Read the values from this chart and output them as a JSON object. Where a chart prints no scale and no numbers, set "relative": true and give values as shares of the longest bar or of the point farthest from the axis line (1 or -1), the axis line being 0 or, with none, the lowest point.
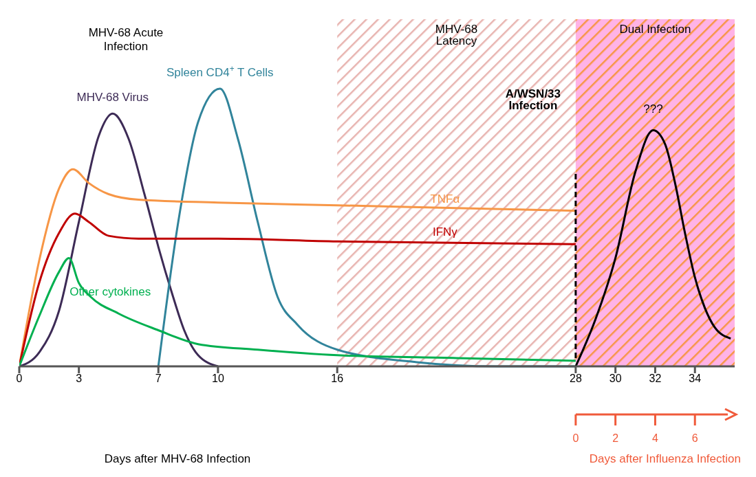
{
  "chart_data": {
    "type": "line",
    "relative": true,
    "xlabel": "Days after MHV-68 Infection",
    "x2label": "Days after Influenza Infection",
    "xlim": [
      0,
      36
    ],
    "xticks": [
      0,
      3,
      7,
      10,
      16,
      28,
      30,
      32,
      34
    ],
    "x2lim": [
      -28,
      8
    ],
    "x2ticks": [
      0,
      2,
      4,
      6
    ],
    "grid": false,
    "legend": false,
    "marker": "none",
    "line_style": "solid",
    "series": [
      {
        "name": "MHV-68 Virus",
        "color": "#3d2b56",
        "x": [
          0,
          1,
          2,
          3,
          4,
          4.7,
          5.5,
          6.3,
          7,
          7.7,
          8.3,
          9,
          10
        ],
        "values": [
          0,
          0.05,
          0.2,
          0.52,
          0.83,
          0.91,
          0.82,
          0.62,
          0.43,
          0.26,
          0.13,
          0.04,
          0
        ]
      },
      {
        "name": "Spleen CD4$^{+}$ T Cells",
        "color": "#31849b",
        "x": [
          7,
          8,
          9,
          10.1,
          11,
          12,
          13,
          14,
          16,
          20,
          24,
          28
        ],
        "values": [
          0,
          0.52,
          0.88,
          1,
          0.82,
          0.52,
          0.25,
          0.15,
          0.06,
          0.015,
          0,
          0
        ]
      },
      {
        "name": "TNFα",
        "color": "#f79646",
        "x": [
          0,
          1,
          2,
          2.7,
          3.5,
          4.5,
          6,
          10,
          16,
          22,
          28
        ],
        "values": [
          0,
          0.38,
          0.64,
          0.71,
          0.66,
          0.62,
          0.6,
          0.59,
          0.58,
          0.57,
          0.56
        ]
      },
      {
        "name": "IFNγ",
        "color": "#c00000",
        "x": [
          0,
          1,
          2,
          2.8,
          3.5,
          4.5,
          6,
          10,
          16,
          28
        ],
        "values": [
          0,
          0.3,
          0.48,
          0.55,
          0.52,
          0.47,
          0.46,
          0.46,
          0.45,
          0.44
        ]
      },
      {
        "name": "Other cytokines",
        "color": "#00b050",
        "x": [
          0,
          1,
          2,
          2.5,
          3,
          3.6,
          5,
          7,
          9,
          12,
          16,
          22,
          28
        ],
        "values": [
          0,
          0.18,
          0.34,
          0.39,
          0.3,
          0.25,
          0.19,
          0.13,
          0.08,
          0.06,
          0.04,
          0.03,
          0.02
        ]
      },
      {
        "color": "#000000",
        "x": [
          28,
          29,
          30,
          31,
          31.9,
          32.5,
          33,
          33.5,
          34,
          34.5,
          35,
          35.8
        ],
        "values": [
          0,
          0.17,
          0.39,
          0.7,
          0.85,
          0.8,
          0.66,
          0.48,
          0.32,
          0.21,
          0.14,
          0.1
        ]
      }
    ],
    "bands": [
      {
        "axis": "x",
        "from": 16,
        "to": 28,
        "label": "MHV-68 Latency",
        "color": "#e8b4b0"
      },
      {
        "axis": "x",
        "from": 28,
        "to": 36,
        "label": "Dual Infection",
        "color": "#ffb3e6"
      }
    ],
    "ref_lines": [
      {
        "axis": "x",
        "value": 28,
        "label": "A/WSN/33 Infection",
        "line_style": "dashed",
        "color": "#000000"
      }
    ],
    "annotations": [
      "MHV-68 Acute Infection",
      {
        "text": "???",
        "x": 31.9,
        "y": 0.85
      }
    ]
  }
}
